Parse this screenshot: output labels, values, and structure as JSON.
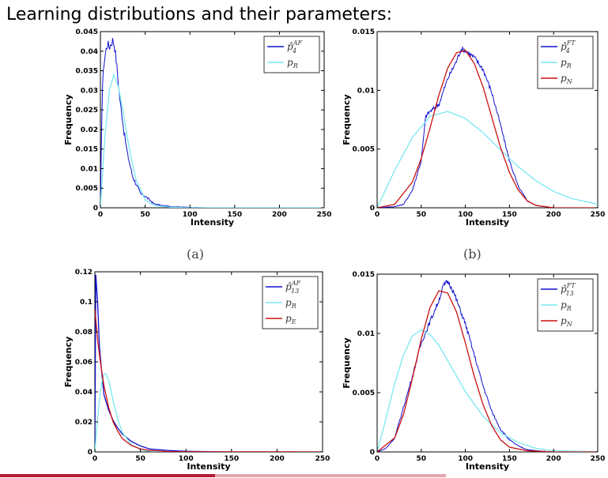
{
  "slide": {
    "title": "Learning distributions and their parameters:"
  },
  "captions": [
    "(a)",
    "(b)"
  ],
  "colors": {
    "estimate": "#1010d0",
    "pR": "#7ae8f0",
    "pE": "#cc1010",
    "pN": "#cc1010",
    "footer_left": "#b31b34",
    "footer_right": "#e8a4ae"
  },
  "chart_data": [
    {
      "type": "line",
      "xlabel": "Intensity",
      "ylabel": "Frequency",
      "xlim": [
        0,
        250
      ],
      "ylim": [
        0,
        0.045
      ],
      "xticks": [
        0,
        50,
        100,
        150,
        200,
        250
      ],
      "yticks": [
        0,
        0.005,
        0.01,
        0.015,
        0.02,
        0.025,
        0.03,
        0.035,
        0.04,
        0.045
      ],
      "ytick_labels": [
        "0",
        "0.005",
        "0.01",
        "0.015",
        "0.02",
        "0.025",
        "0.03",
        "0.035",
        "0.04",
        "0.045"
      ],
      "legend": "top-right",
      "series": [
        {
          "name": "p̂4^AF",
          "legend_base": "p̂",
          "legend_sub": "4",
          "legend_sup": "AF",
          "color": "#1010d0",
          "noisy": true,
          "x": [
            0,
            2,
            4,
            6,
            8,
            10,
            12,
            14,
            16,
            18,
            20,
            22,
            24,
            26,
            28,
            30,
            33,
            36,
            40,
            45,
            50,
            55,
            60,
            70,
            80,
            90,
            100,
            120,
            150,
            200,
            250
          ],
          "y": [
            0,
            0.03,
            0.037,
            0.04,
            0.042,
            0.041,
            0.042,
            0.043,
            0.041,
            0.037,
            0.032,
            0.027,
            0.024,
            0.02,
            0.017,
            0.014,
            0.011,
            0.008,
            0.006,
            0.0035,
            0.003,
            0.002,
            0.001,
            0.0005,
            0.0003,
            0.0002,
            0.0001,
            0,
            0,
            0,
            0
          ]
        },
        {
          "name": "pR",
          "legend_base": "p",
          "legend_sub": "R",
          "legend_sup": "",
          "color": "#7ae8f0",
          "noisy": false,
          "x": [
            0,
            5,
            10,
            15,
            20,
            25,
            30,
            35,
            40,
            50,
            60,
            80,
            100,
            150,
            250
          ],
          "y": [
            0,
            0.018,
            0.03,
            0.034,
            0.031,
            0.025,
            0.018,
            0.012,
            0.007,
            0.002,
            0.0006,
            0.0001,
            0,
            0,
            0
          ]
        }
      ]
    },
    {
      "type": "line",
      "xlabel": "Intensity",
      "ylabel": "Frequency",
      "xlim": [
        0,
        250
      ],
      "ylim": [
        0,
        0.015
      ],
      "xticks": [
        0,
        50,
        100,
        150,
        200,
        250
      ],
      "yticks": [
        0,
        0.005,
        0.01,
        0.015
      ],
      "ytick_labels": [
        "0",
        "0.005",
        "0.01",
        "0.015"
      ],
      "legend": "top-right",
      "series": [
        {
          "name": "p̂4^FT",
          "legend_base": "p̂",
          "legend_sub": "4",
          "legend_sup": "FT",
          "color": "#1010d0",
          "noisy": true,
          "x": [
            0,
            20,
            30,
            40,
            50,
            55,
            60,
            65,
            70,
            80,
            90,
            95,
            100,
            110,
            120,
            130,
            140,
            150,
            160,
            170,
            180,
            200,
            250
          ],
          "y": [
            0,
            0.0001,
            0.0003,
            0.0015,
            0.004,
            0.0078,
            0.0082,
            0.0085,
            0.0088,
            0.011,
            0.0125,
            0.0135,
            0.0134,
            0.0128,
            0.0118,
            0.0098,
            0.007,
            0.004,
            0.0018,
            0.0006,
            0.0002,
            0,
            0
          ]
        },
        {
          "name": "pR",
          "legend_base": "p",
          "legend_sub": "R",
          "legend_sup": "",
          "color": "#7ae8f0",
          "noisy": false,
          "x": [
            0,
            20,
            40,
            60,
            80,
            100,
            120,
            140,
            160,
            180,
            200,
            220,
            250
          ],
          "y": [
            0,
            0.0032,
            0.006,
            0.0078,
            0.0082,
            0.0076,
            0.0064,
            0.0049,
            0.0035,
            0.0023,
            0.0014,
            0.0008,
            0.0003
          ]
        },
        {
          "name": "pN",
          "legend_base": "p",
          "legend_sub": "N",
          "legend_sup": "",
          "color": "#cc1010",
          "noisy": false,
          "x": [
            0,
            20,
            40,
            50,
            60,
            70,
            80,
            90,
            100,
            110,
            120,
            130,
            140,
            150,
            160,
            170,
            180,
            200,
            250
          ],
          "y": [
            0,
            0.0003,
            0.0022,
            0.0042,
            0.0068,
            0.0096,
            0.0119,
            0.0132,
            0.0134,
            0.0123,
            0.0103,
            0.0077,
            0.0051,
            0.003,
            0.0015,
            0.0006,
            0.0002,
            0,
            0
          ]
        }
      ]
    },
    {
      "type": "line",
      "xlabel": "Intensity",
      "ylabel": "Frequency",
      "xlim": [
        0,
        250
      ],
      "ylim": [
        0,
        0.12
      ],
      "xticks": [
        0,
        50,
        100,
        150,
        200,
        250
      ],
      "yticks": [
        0,
        0.02,
        0.04,
        0.06,
        0.08,
        0.1,
        0.12
      ],
      "ytick_labels": [
        "0",
        "0.02",
        "0.04",
        "0.06",
        "0.08",
        "0.1",
        "0.12"
      ],
      "legend": "top-right",
      "series": [
        {
          "name": "p̂13^AF",
          "legend_base": "p̂",
          "legend_sub": "13",
          "legend_sup": "AF",
          "color": "#1010d0",
          "noisy": false,
          "x": [
            0,
            1,
            3,
            5,
            8,
            10,
            15,
            20,
            25,
            30,
            40,
            50,
            60,
            80,
            100,
            150,
            250
          ],
          "y": [
            0,
            0.118,
            0.1,
            0.07,
            0.05,
            0.038,
            0.028,
            0.021,
            0.016,
            0.012,
            0.007,
            0.004,
            0.002,
            0.001,
            0.0004,
            0,
            0
          ]
        },
        {
          "name": "pR",
          "legend_base": "p",
          "legend_sub": "R",
          "legend_sup": "",
          "color": "#7ae8f0",
          "noisy": false,
          "x": [
            0,
            2,
            5,
            8,
            10,
            12,
            15,
            18,
            20,
            25,
            30,
            40,
            50,
            60,
            80,
            100,
            250
          ],
          "y": [
            0,
            0.015,
            0.035,
            0.048,
            0.052,
            0.052,
            0.048,
            0.04,
            0.034,
            0.022,
            0.013,
            0.005,
            0.0015,
            0.0005,
            0,
            0,
            0
          ]
        },
        {
          "name": "pE",
          "legend_base": "p",
          "legend_sub": "E",
          "legend_sup": "",
          "color": "#cc1010",
          "noisy": false,
          "x": [
            0,
            3,
            6,
            10,
            15,
            20,
            25,
            30,
            40,
            50,
            60,
            80,
            100,
            250
          ],
          "y": [
            0.095,
            0.075,
            0.06,
            0.044,
            0.03,
            0.02,
            0.014,
            0.009,
            0.0043,
            0.002,
            0.001,
            0.0002,
            0.0001,
            0
          ]
        }
      ]
    },
    {
      "type": "line",
      "xlabel": "Intensity",
      "ylabel": "Frequency",
      "xlim": [
        0,
        250
      ],
      "ylim": [
        0,
        0.015
      ],
      "xticks": [
        0,
        50,
        100,
        150,
        200,
        250
      ],
      "yticks": [
        0,
        0.005,
        0.01,
        0.015
      ],
      "ytick_labels": [
        "0",
        "0.005",
        "0.01",
        "0.015"
      ],
      "legend": "top-right",
      "series": [
        {
          "name": "p̂13^FT",
          "legend_base": "p̂",
          "legend_sub": "13",
          "legend_sup": "FT",
          "color": "#1010d0",
          "noisy": true,
          "x": [
            0,
            10,
            20,
            30,
            40,
            50,
            60,
            70,
            75,
            80,
            85,
            90,
            100,
            110,
            120,
            130,
            140,
            150,
            160,
            170,
            180,
            200,
            250
          ],
          "y": [
            0,
            0.0003,
            0.0012,
            0.0038,
            0.0064,
            0.0092,
            0.011,
            0.0128,
            0.014,
            0.0144,
            0.0138,
            0.0128,
            0.0108,
            0.0082,
            0.0056,
            0.0034,
            0.0019,
            0.001,
            0.0005,
            0.0002,
            0.0001,
            0,
            0
          ]
        },
        {
          "name": "pR",
          "legend_base": "p",
          "legend_sub": "R",
          "legend_sup": "",
          "color": "#7ae8f0",
          "noisy": false,
          "x": [
            0,
            10,
            20,
            30,
            40,
            50,
            60,
            70,
            80,
            100,
            120,
            140,
            160,
            180,
            200,
            250
          ],
          "y": [
            0,
            0.0028,
            0.0058,
            0.0082,
            0.0098,
            0.0103,
            0.0099,
            0.009,
            0.0077,
            0.0051,
            0.003,
            0.0016,
            0.0008,
            0.0003,
            0.0001,
            0
          ]
        },
        {
          "name": "pN",
          "legend_base": "p",
          "legend_sub": "N",
          "legend_sup": "",
          "color": "#cc1010",
          "noisy": false,
          "x": [
            0,
            20,
            30,
            40,
            50,
            60,
            70,
            80,
            90,
            100,
            110,
            120,
            130,
            140,
            150,
            170,
            200,
            250
          ],
          "y": [
            0,
            0.0012,
            0.0032,
            0.0062,
            0.0095,
            0.0122,
            0.0136,
            0.0134,
            0.0118,
            0.0092,
            0.0064,
            0.004,
            0.0022,
            0.001,
            0.0004,
            0.0001,
            0,
            0
          ]
        }
      ]
    }
  ]
}
